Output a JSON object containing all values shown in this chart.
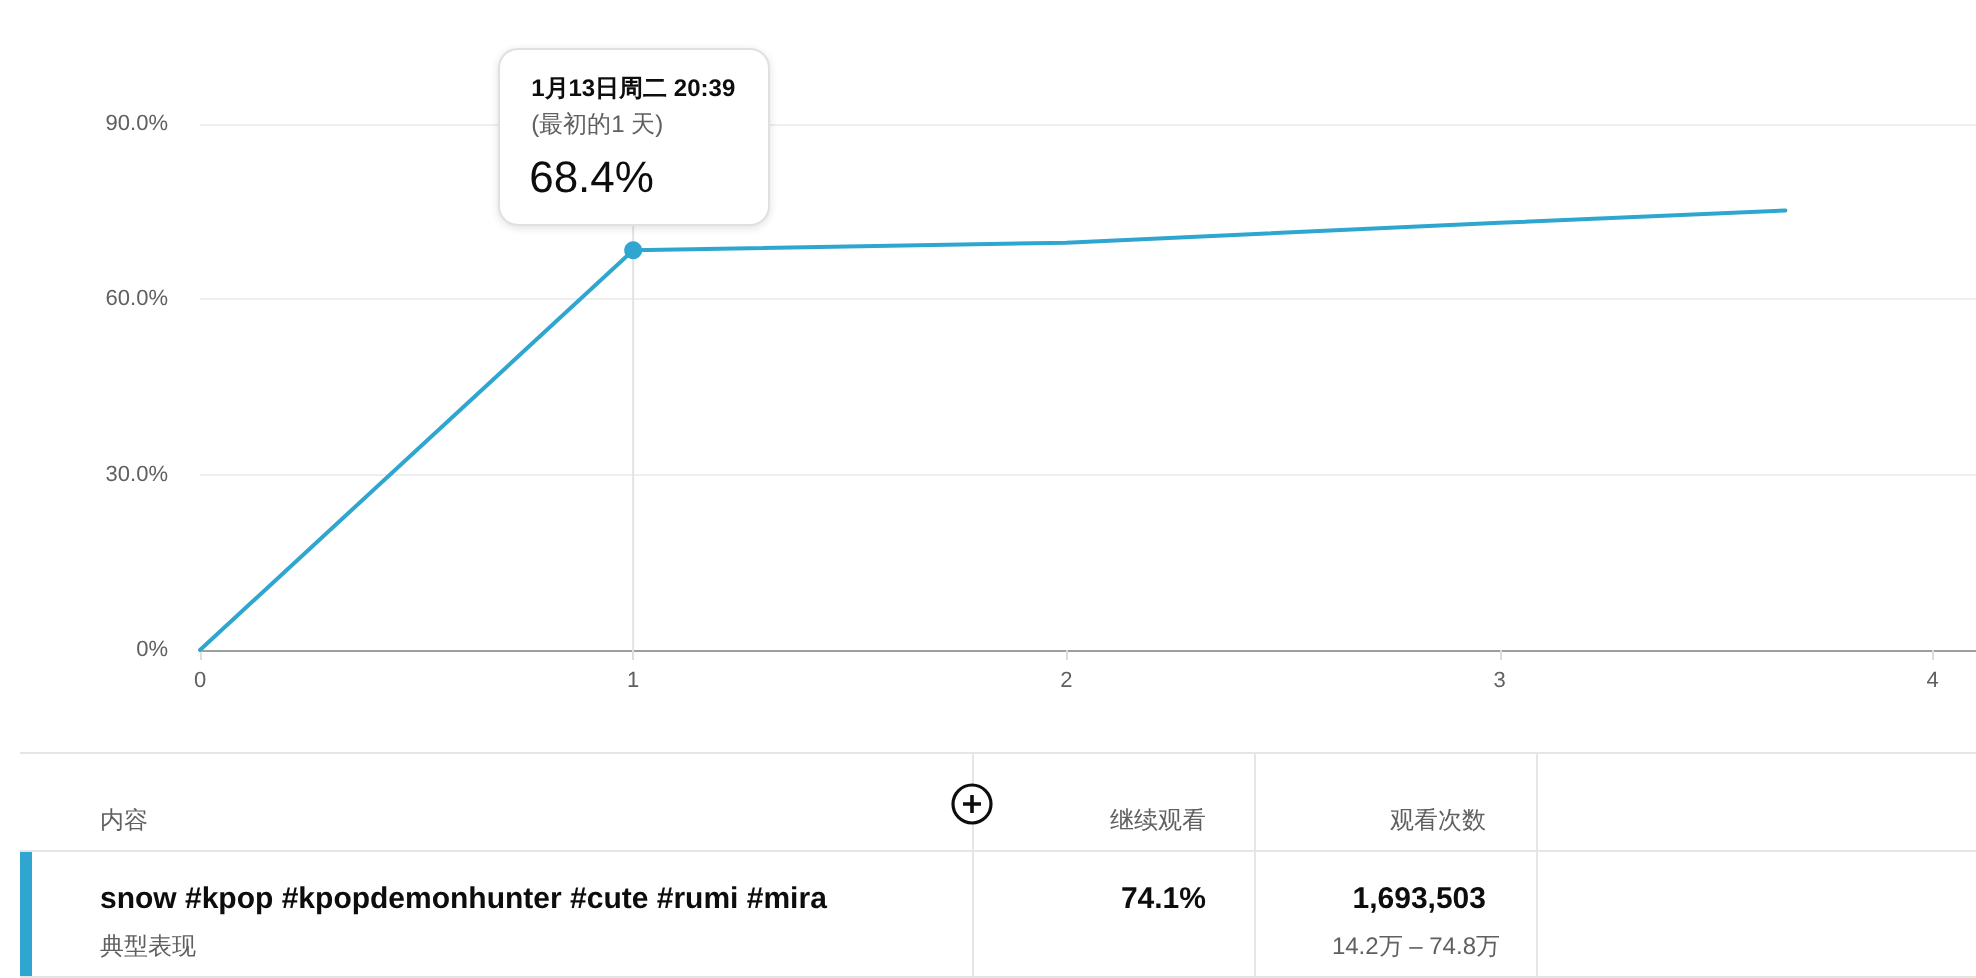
{
  "chart_data": {
    "type": "line",
    "x": [
      0,
      1,
      2,
      3,
      3.66
    ],
    "series": [
      {
        "color": "#2fa6cf",
        "values": [
          0,
          68.4,
          69.7,
          73.1,
          75.2
        ],
        "value_labels": [
          null,
          "68.4%",
          null,
          null,
          null
        ]
      }
    ],
    "xlim": [
      0,
      4.1
    ],
    "xticks": [
      0,
      1,
      2,
      3,
      4
    ],
    "ylim": [
      0,
      90
    ],
    "yticks": [
      {
        "value": 0,
        "label": "0%"
      },
      {
        "value": 30,
        "label": "30.0%"
      },
      {
        "value": 60,
        "label": "60.0%"
      },
      {
        "value": 90,
        "label": "90.0%"
      }
    ],
    "grid": "y",
    "marker": "none",
    "line_style": "solid",
    "ref_lines": [
      {
        "axis": "x",
        "value": 1,
        "color": "#e3e3e3"
      }
    ],
    "annotations": [
      "1月13日周二 20:39",
      "(最初的1 天)",
      "内容",
      "继续观看",
      "观看次数",
      "snow #kpop #kpopdemonhunter #cute #rumi #mira",
      "典型表现",
      "74.1%",
      "1,693,503",
      "14.2万 – 74.8万"
    ]
  }
}
